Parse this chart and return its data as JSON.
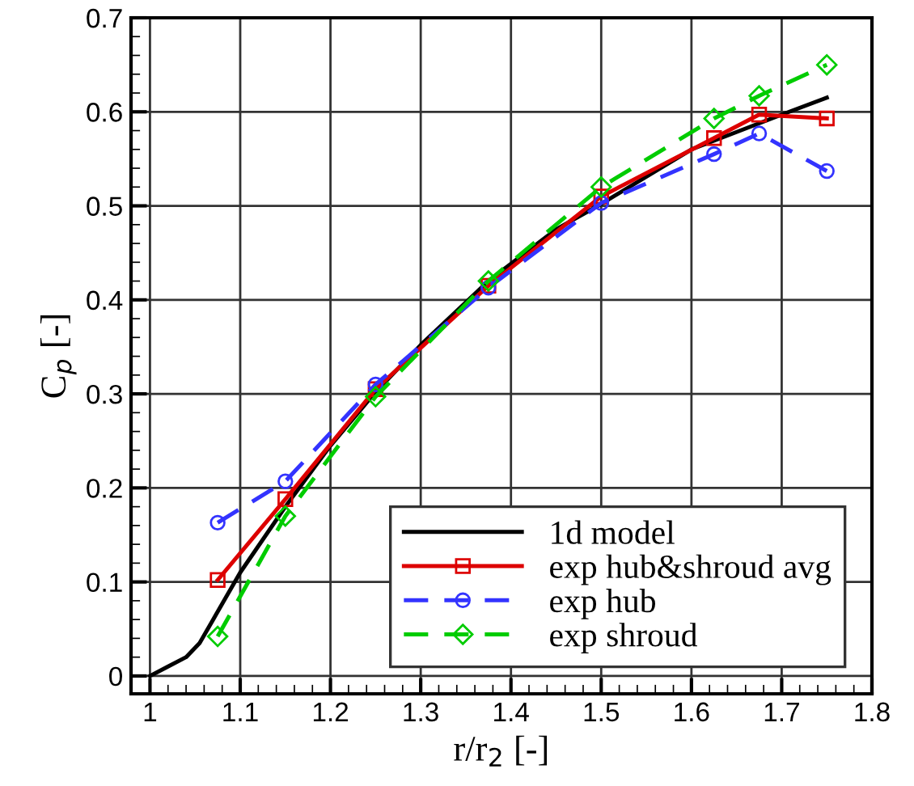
{
  "chart_data": {
    "type": "line",
    "xlabel": "r/r$_{2}$ [-]",
    "ylabel": "C$_{p}$ [-]",
    "xlim": [
      0.979,
      1.8
    ],
    "ylim": [
      -0.019,
      0.7
    ],
    "xticks": [
      1,
      1.1,
      1.2,
      1.3,
      1.4,
      1.5,
      1.6,
      1.7,
      1.8
    ],
    "yticks": [
      0,
      0.1,
      0.2,
      0.3,
      0.4,
      0.5,
      0.6,
      0.7
    ],
    "grid": true,
    "legend": "bottom right",
    "series": [
      {
        "name": "1d model",
        "color": "#000000",
        "marker": "none",
        "line_style": "solid",
        "x": [
          1,
          1.02,
          1.04,
          1.055,
          1.07,
          1.085,
          1.1,
          1.15,
          1.2,
          1.25,
          1.3,
          1.375,
          1.45,
          1.5,
          1.6,
          1.7,
          1.75
        ],
        "values": [
          0,
          0.01,
          0.02,
          0.035,
          0.06,
          0.085,
          0.11,
          0.18,
          0.245,
          0.302,
          0.352,
          0.42,
          0.475,
          0.502,
          0.56,
          0.597,
          0.615
        ]
      },
      {
        "name": "exp hub&shroud avg",
        "color": "#dd0000",
        "marker": "square",
        "line_style": "solid",
        "x": [
          1.075,
          1.15,
          1.25,
          1.375,
          1.5,
          1.625,
          1.675,
          1.75
        ],
        "values": [
          0.102,
          0.188,
          0.305,
          0.415,
          0.51,
          0.572,
          0.597,
          0.593
        ]
      },
      {
        "name": "exp hub",
        "color": "#3333ff",
        "marker": "circle",
        "line_style": "dashed",
        "x": [
          1.075,
          1.15,
          1.25,
          1.375,
          1.5,
          1.625,
          1.675,
          1.75
        ],
        "values": [
          0.163,
          0.207,
          0.31,
          0.413,
          0.503,
          0.555,
          0.577,
          0.537
        ]
      },
      {
        "name": "exp shroud",
        "color": "#00cc00",
        "marker": "diamond",
        "line_style": "dashed",
        "x": [
          1.075,
          1.15,
          1.25,
          1.375,
          1.5,
          1.625,
          1.675,
          1.75
        ],
        "values": [
          0.042,
          0.17,
          0.297,
          0.42,
          0.52,
          0.593,
          0.617,
          0.65
        ]
      }
    ]
  }
}
